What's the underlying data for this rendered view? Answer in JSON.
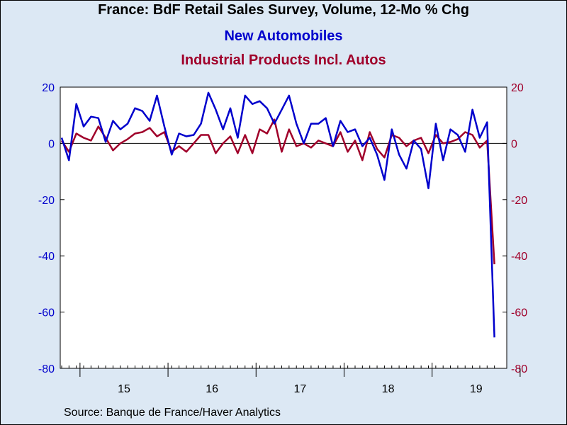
{
  "title": "France: BdF Retail Sales Survey, Volume, 12-Mo % Chg",
  "source": "Source:  Banque de France/Haver Analytics",
  "chart_data": {
    "type": "line",
    "start": "2014-10",
    "x_ticks": [
      "15",
      "16",
      "17",
      "18",
      "19"
    ],
    "y_left": {
      "range": [
        -80,
        20
      ],
      "ticks": [
        "20",
        "0",
        "-20",
        "-40",
        "-60",
        "-80"
      ]
    },
    "y_right": {
      "range": [
        -80,
        20
      ],
      "ticks": [
        "20",
        "0",
        "-20",
        "-40",
        "-60",
        "-80"
      ]
    },
    "grid": false,
    "zero_line": true,
    "series": [
      {
        "name": "New Automobiles",
        "color": "#0000cc",
        "axis": "left",
        "values": [
          2,
          -6,
          14,
          6,
          9.5,
          9,
          0.5,
          8,
          5,
          7,
          12.5,
          11.5,
          8,
          17,
          6,
          -4,
          3.5,
          2.5,
          3,
          7,
          18,
          12,
          5,
          12.5,
          2,
          17,
          14,
          15,
          12.5,
          7,
          12,
          17,
          7,
          0,
          7,
          7,
          9,
          -1,
          8,
          4,
          5,
          -1,
          2,
          -4,
          -13,
          5,
          -4,
          -9,
          1,
          -2,
          -16,
          7,
          -6,
          5,
          3,
          -3,
          12,
          2,
          7.5,
          -69
        ]
      },
      {
        "name": "Industrial Products Incl. Autos",
        "color": "#a0002a",
        "axis": "right",
        "values": [
          1,
          -3,
          3.5,
          2,
          1,
          6,
          2,
          -2.5,
          0,
          1.5,
          3.5,
          4,
          5.5,
          2.5,
          4,
          -3,
          -1,
          -3,
          0,
          3,
          3,
          -3.5,
          0,
          2.5,
          -3.5,
          3,
          -3.5,
          5,
          3.5,
          8.5,
          -3,
          5,
          -1,
          0,
          -1.5,
          1,
          0,
          -1,
          4,
          -3,
          1,
          -6,
          4,
          -2,
          -5,
          3,
          2,
          -1,
          1,
          2,
          -3.5,
          3,
          0,
          0.5,
          1.5,
          4,
          3,
          -1.5,
          1,
          -43
        ]
      }
    ]
  }
}
